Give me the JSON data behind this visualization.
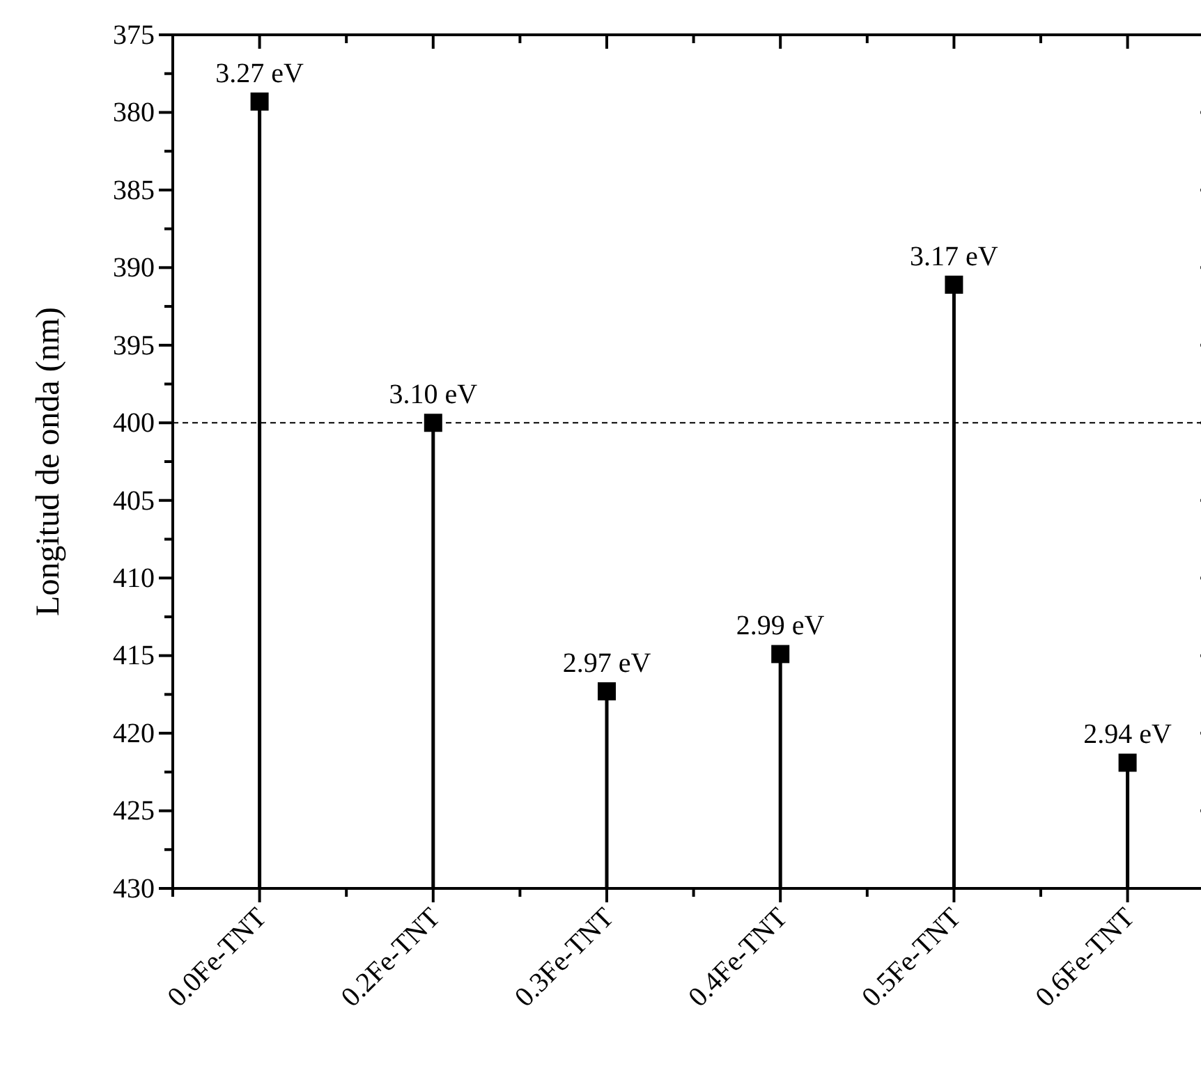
{
  "chart_data": {
    "type": "lollipop",
    "ylabel": "Longitud de onda (nm)",
    "categories": [
      "0.0Fe-TNT",
      "0.2Fe-TNT",
      "0.3Fe-TNT",
      "0.4Fe-TNT",
      "0.5Fe-TNT",
      "0.6Fe-TNT"
    ],
    "values": [
      379.3,
      400.0,
      417.3,
      414.9,
      391.1,
      421.9
    ],
    "annotations": [
      {
        "text": "3.27 eV",
        "x": "0.0Fe-TNT",
        "y": 379.3
      },
      {
        "text": "3.10 eV",
        "x": "0.2Fe-TNT",
        "y": 400.0
      },
      {
        "text": "2.97 eV",
        "x": "0.3Fe-TNT",
        "y": 417.3
      },
      {
        "text": "2.99 eV",
        "x": "0.4Fe-TNT",
        "y": 414.9
      },
      {
        "text": "3.17 eV",
        "x": "0.5Fe-TNT",
        "y": 391.1
      },
      {
        "text": "2.94 eV",
        "x": "0.6Fe-TNT",
        "y": 421.9
      }
    ],
    "color": "#000000",
    "marker": "square",
    "ylim": [
      430,
      375
    ],
    "yticks": [
      375,
      380,
      385,
      390,
      395,
      400,
      405,
      410,
      415,
      420,
      425,
      430
    ],
    "ref_lines": [
      {
        "axis": "y",
        "value": 400,
        "line_style": "dashed",
        "color": "#000000"
      }
    ],
    "legend": false
  }
}
